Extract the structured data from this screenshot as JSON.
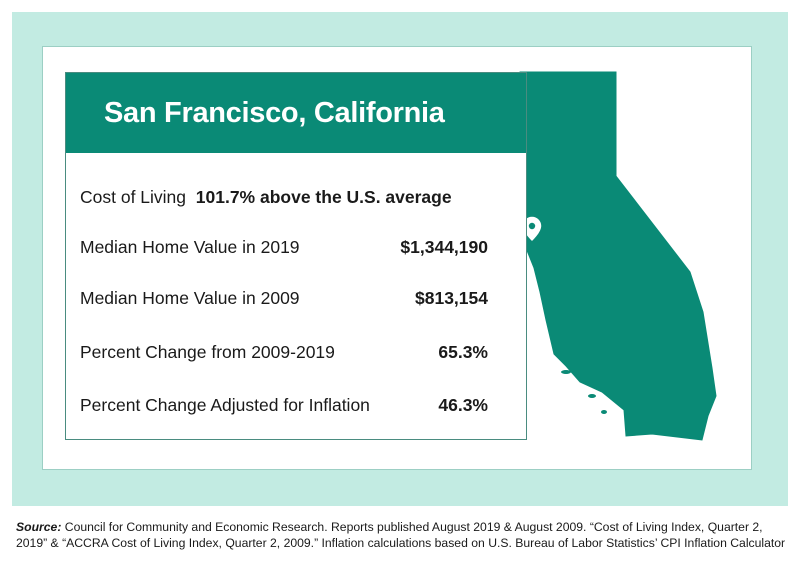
{
  "card": {
    "title": "San Francisco, California",
    "rows": [
      {
        "label": "Cost of Living",
        "value": "101.7% above the U.S. average"
      },
      {
        "label": "Median Home Value in 2019",
        "value": "$1,344,190"
      },
      {
        "label": "Median Home Value in 2009",
        "value": "$813,154"
      },
      {
        "label": "Percent Change from 2009-2019",
        "value": "65.3%"
      },
      {
        "label": "Percent Change Adjusted for Inflation",
        "value": "46.3%"
      }
    ]
  },
  "source": {
    "label": "Source:",
    "text": "Council for Community and Economic Research. Reports published August 2019 & August 2009. “Cost of Living Index, Quarter 2, 2019” & “ACCRA Cost of Living Index, Quarter 2, 2009.” Inflation calculations based on U.S. Bureau of Labor Statistics’ CPI Inflation Calculator"
  },
  "colors": {
    "brand_green": "#0a8a76",
    "light_mint": "#c2ebe2"
  },
  "icons": [
    "california-map-icon",
    "location-pin-icon"
  ]
}
